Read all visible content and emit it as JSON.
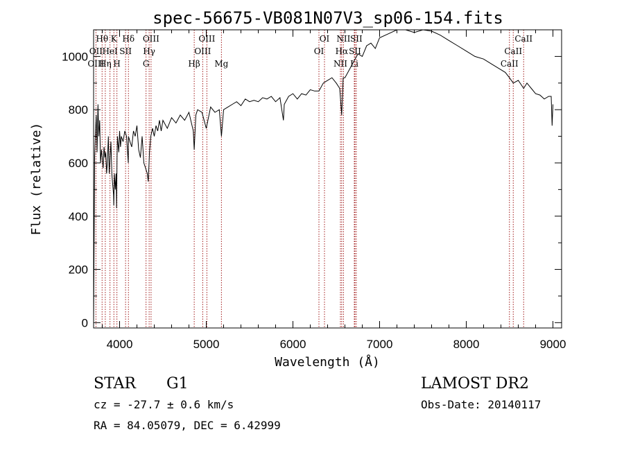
{
  "chart_data": {
    "type": "line",
    "title": "spec-56675-VB081N07V3_sp06-154.fits",
    "xlabel": "Wavelength (Å)",
    "ylabel": "Flux (relative)",
    "xlim": [
      3700,
      9100
    ],
    "ylim": [
      -20,
      1100
    ],
    "xticks": [
      4000,
      5000,
      6000,
      7000,
      8000,
      9000
    ],
    "yticks": [
      0,
      200,
      400,
      600,
      800,
      1000
    ],
    "grid": false,
    "series": [
      {
        "x": [
          3700,
          3705,
          3712,
          3720,
          3730,
          3740,
          3750,
          3760,
          3770,
          3780,
          3790,
          3800,
          3810,
          3820,
          3830,
          3840,
          3850,
          3860,
          3870,
          3880,
          3890,
          3900,
          3910,
          3920,
          3930,
          3933,
          3940,
          3950,
          3960,
          3965,
          3970,
          3975,
          3980,
          3990,
          4000,
          4010,
          4020,
          4040,
          4060,
          4080,
          4100,
          4102,
          4120,
          4140,
          4160,
          4180,
          4200,
          4220,
          4240,
          4260,
          4280,
          4300,
          4320,
          4330,
          4340,
          4345,
          4360,
          4380,
          4400,
          4420,
          4440,
          4460,
          4480,
          4500,
          4550,
          4600,
          4650,
          4700,
          4750,
          4800,
          4850,
          4861,
          4880,
          4900,
          4950,
          5000,
          5050,
          5100,
          5150,
          5175,
          5200,
          5250,
          5300,
          5350,
          5400,
          5450,
          5500,
          5550,
          5600,
          5650,
          5700,
          5750,
          5800,
          5850,
          5890,
          5900,
          5950,
          6000,
          6050,
          6100,
          6150,
          6200,
          6250,
          6300,
          6350,
          6400,
          6450,
          6500,
          6540,
          6562,
          6580,
          6600,
          6650,
          6700,
          6750,
          6800,
          6850,
          6900,
          6950,
          7000,
          7100,
          7200,
          7300,
          7400,
          7500,
          7600,
          7700,
          7800,
          7900,
          8000,
          8100,
          8200,
          8300,
          8400,
          8450,
          8498,
          8542,
          8600,
          8662,
          8700,
          8750,
          8800,
          8850,
          8900,
          8950,
          8980,
          8990,
          9000
        ],
        "values": [
          0,
          250,
          620,
          700,
          780,
          640,
          820,
          700,
          760,
          600,
          650,
          620,
          580,
          660,
          620,
          640,
          560,
          610,
          700,
          560,
          620,
          680,
          560,
          520,
          480,
          440,
          560,
          500,
          560,
          430,
          620,
          700,
          680,
          640,
          720,
          660,
          700,
          680,
          720,
          700,
          600,
          700,
          680,
          660,
          720,
          700,
          740,
          650,
          620,
          700,
          600,
          580,
          560,
          530,
          600,
          640,
          700,
          730,
          700,
          740,
          720,
          760,
          720,
          760,
          730,
          770,
          750,
          780,
          760,
          790,
          720,
          650,
          780,
          800,
          790,
          730,
          810,
          790,
          800,
          700,
          800,
          810,
          820,
          830,
          815,
          840,
          830,
          835,
          830,
          845,
          840,
          850,
          830,
          845,
          760,
          820,
          850,
          860,
          840,
          860,
          855,
          875,
          870,
          870,
          900,
          910,
          920,
          900,
          880,
          780,
          920,
          920,
          950,
          980,
          1010,
          1000,
          1040,
          1050,
          1030,
          1070,
          1085,
          1100,
          1100,
          1090,
          1100,
          1095,
          1080,
          1060,
          1040,
          1020,
          1000,
          990,
          970,
          950,
          940,
          920,
          900,
          910,
          880,
          900,
          880,
          860,
          855,
          840,
          850,
          850,
          740,
          820
        ]
      }
    ],
    "spectral_lines": [
      {
        "name": "Hθ",
        "wavelength": 3798,
        "row": 0
      },
      {
        "name": "OII",
        "wavelength": 3727,
        "row": 1
      },
      {
        "name": "OIII",
        "wavelength": 3727,
        "row": 2
      },
      {
        "name": "Hη",
        "wavelength": 3835,
        "row": 2
      },
      {
        "name": "K",
        "wavelength": 3934,
        "row": 0
      },
      {
        "name": "HeI",
        "wavelength": 3889,
        "row": 1
      },
      {
        "name": "H",
        "wavelength": 3969,
        "row": 2
      },
      {
        "name": "SII",
        "wavelength": 4069,
        "row": 1
      },
      {
        "name": "Hδ",
        "wavelength": 4102,
        "row": 0
      },
      {
        "name": "OIII",
        "wavelength": 4363,
        "row": 0
      },
      {
        "name": "Hγ",
        "wavelength": 4341,
        "row": 1
      },
      {
        "name": "G",
        "wavelength": 4305,
        "row": 2
      },
      {
        "name": "OIII",
        "wavelength": 5007,
        "row": 0
      },
      {
        "name": "OIII",
        "wavelength": 4959,
        "row": 1
      },
      {
        "name": "Hβ",
        "wavelength": 4861,
        "row": 2
      },
      {
        "name": "Mg",
        "wavelength": 5175,
        "row": 2
      },
      {
        "name": "OI",
        "wavelength": 6364,
        "row": 0
      },
      {
        "name": "OI",
        "wavelength": 6300,
        "row": 1
      },
      {
        "name": "NII",
        "wavelength": 6583,
        "row": 0
      },
      {
        "name": "Hα",
        "wavelength": 6563,
        "row": 1
      },
      {
        "name": "NII",
        "wavelength": 6548,
        "row": 2
      },
      {
        "name": "SII",
        "wavelength": 6731,
        "row": 0
      },
      {
        "name": "SII",
        "wavelength": 6716,
        "row": 1
      },
      {
        "name": "Li",
        "wavelength": 6708,
        "row": 2
      },
      {
        "name": "CaII",
        "wavelength": 8662,
        "row": 0
      },
      {
        "name": "CaII",
        "wavelength": 8542,
        "row": 1
      },
      {
        "name": "CaII",
        "wavelength": 8498,
        "row": 2
      }
    ]
  },
  "info": {
    "class": "STAR",
    "subclass": "G1",
    "survey": "LAMOST DR2",
    "cz": "cz = -27.7 ± 0.6 km/s",
    "obs_date": "Obs-Date: 20140117",
    "radec": "RA =  84.05079, DEC =   6.42999"
  }
}
